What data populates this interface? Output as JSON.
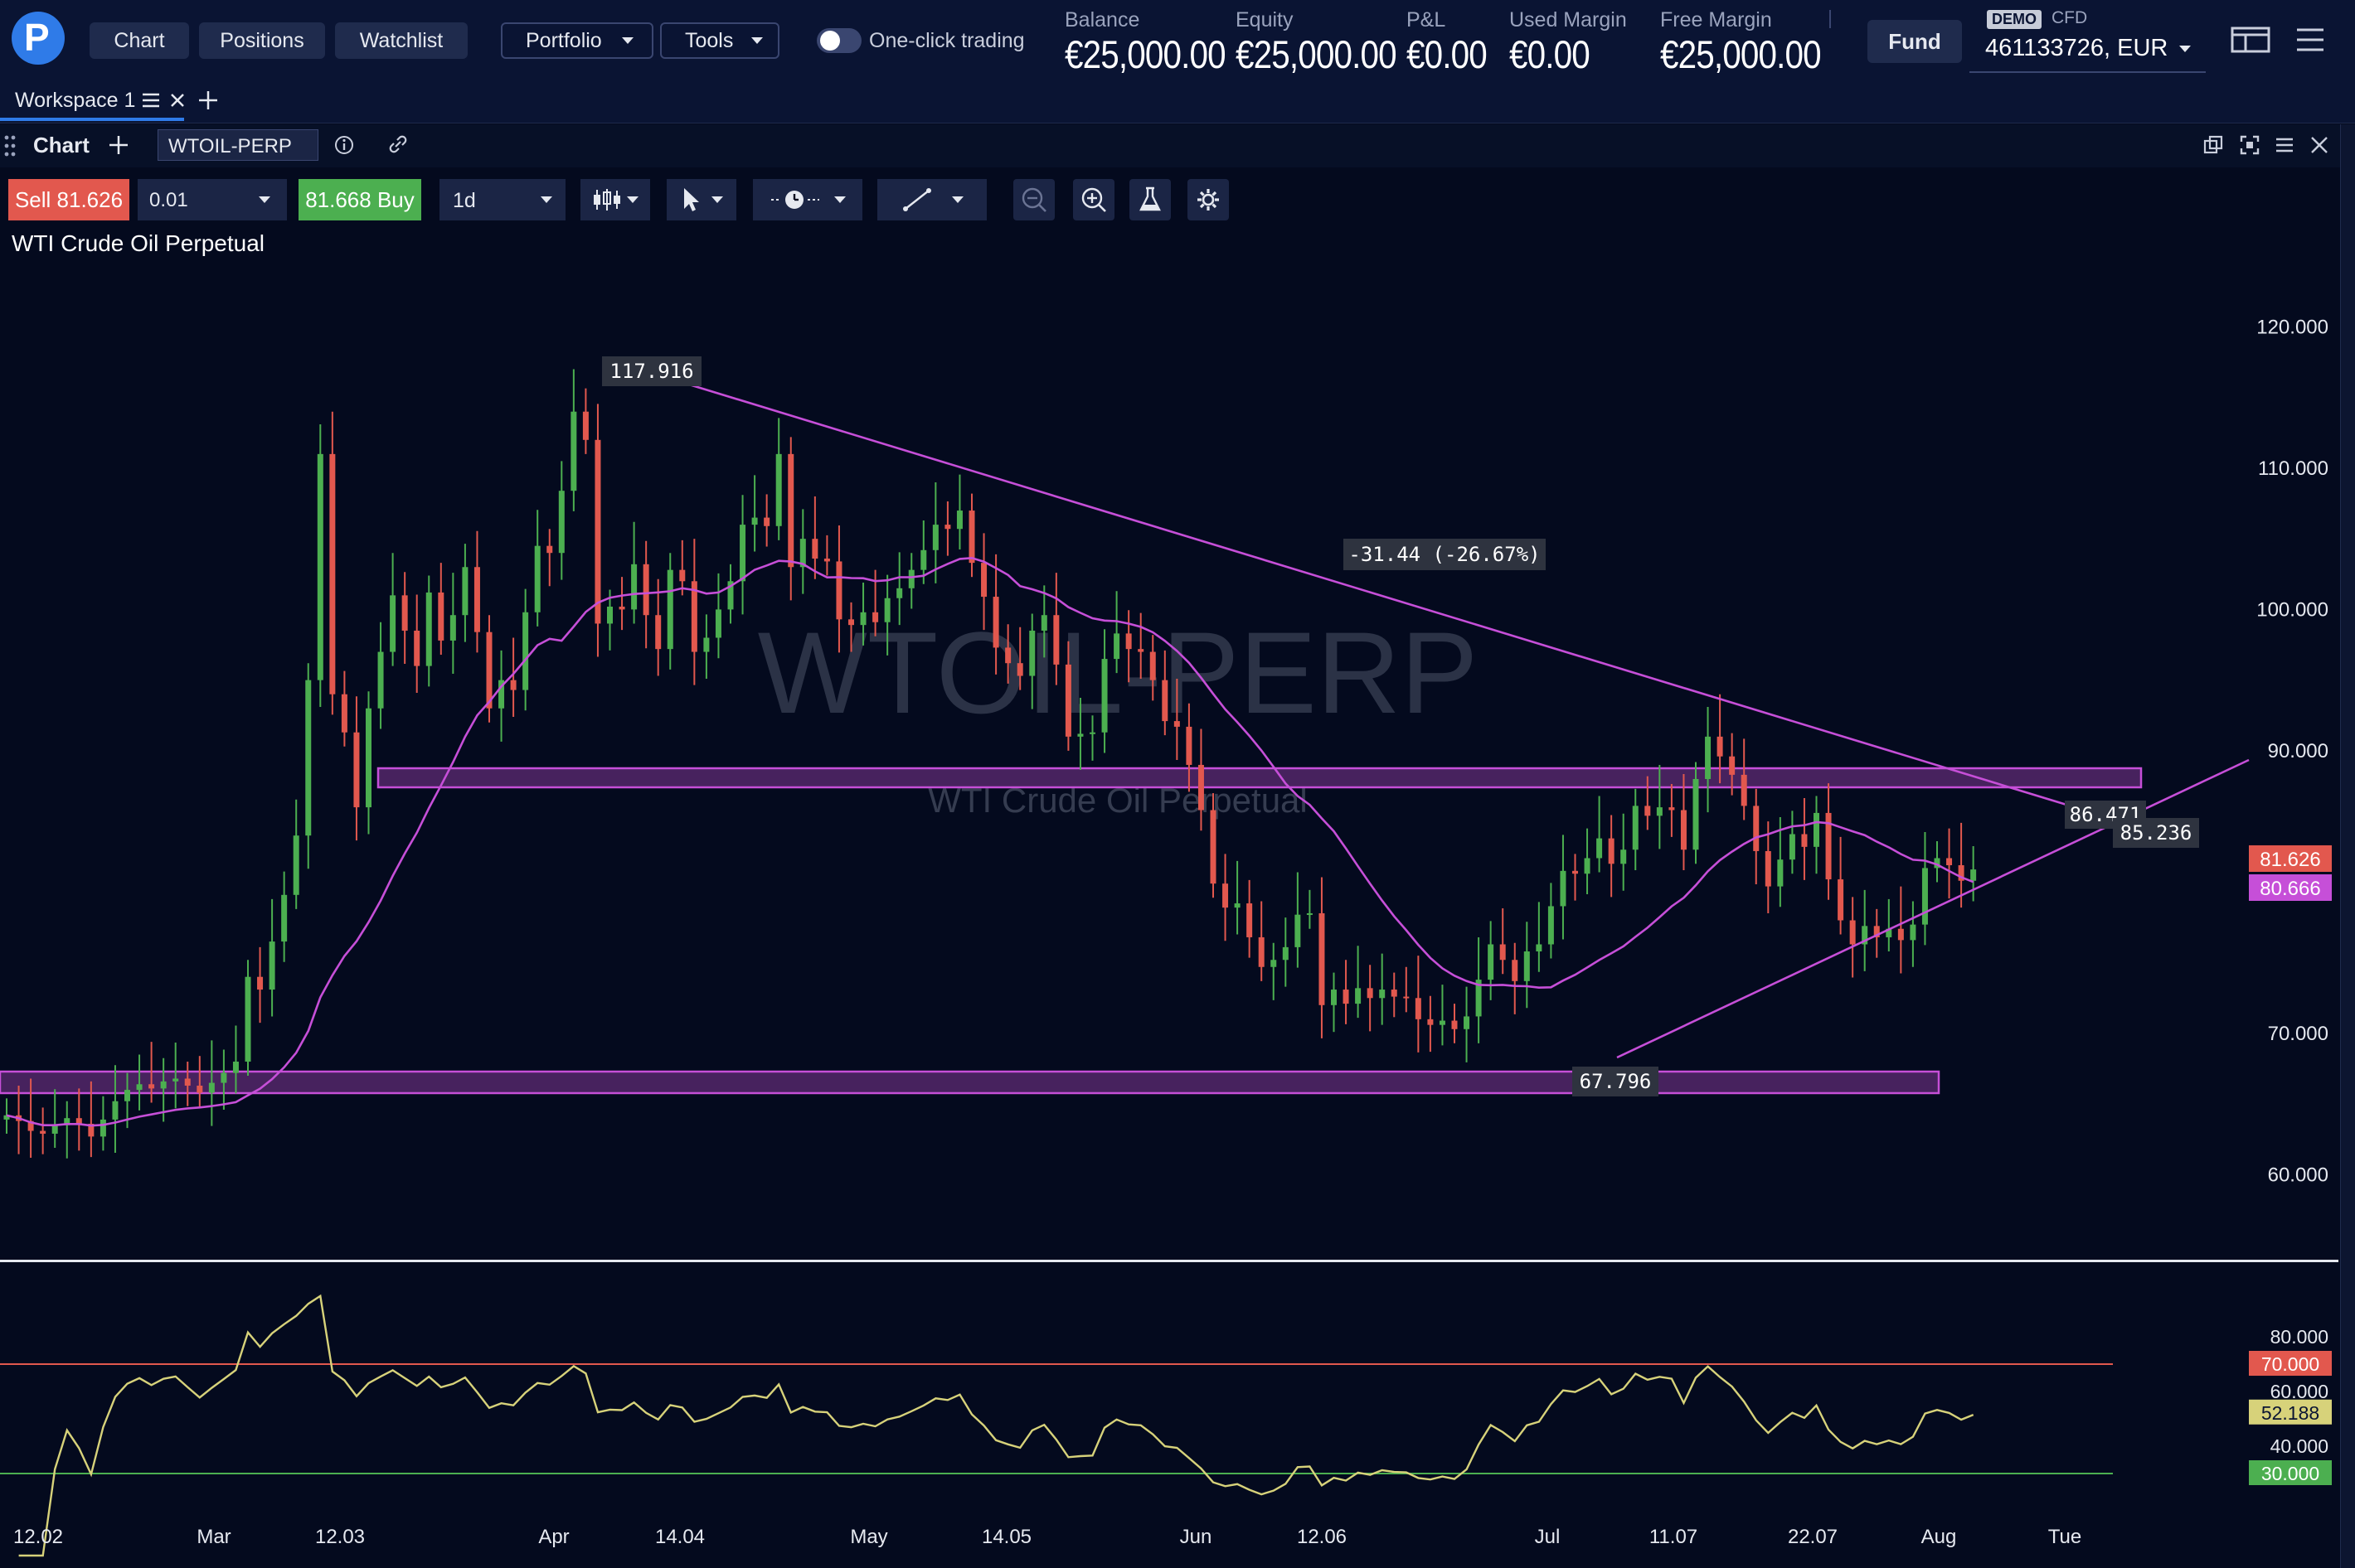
{
  "nav": {
    "buttons": [
      "Chart",
      "Positions",
      "Watchlist"
    ],
    "portfolio": "Portfolio",
    "tools": "Tools",
    "one_click": "One-click trading"
  },
  "account": {
    "balance_label": "Balance",
    "balance": "€25,000.00",
    "equity_label": "Equity",
    "equity": "€25,000.00",
    "pnl_label": "P&L",
    "pnl": "€0.00",
    "used_margin_label": "Used Margin",
    "used_margin": "€0.00",
    "free_margin_label": "Free Margin",
    "free_margin": "€25,000.00",
    "fund": "Fund",
    "demo": "DEMO",
    "cfd": "CFD",
    "account_number": "461133726, EUR"
  },
  "workspace": {
    "tab": "Workspace 1"
  },
  "chart_header": {
    "title": "Chart",
    "symbol": "WTOIL-PERP"
  },
  "toolbar": {
    "sell_label": "Sell",
    "sell_price": "81.626",
    "quantity": "0.01",
    "buy_price": "81.668",
    "buy_label": "Buy",
    "interval": "1d"
  },
  "instrument_name": "WTI Crude Oil Perpetual",
  "watermark": {
    "symbol": "WTOIL-PERP",
    "name": "WTI Crude Oil Perpetual"
  },
  "colors": {
    "up": "#4caf50",
    "down": "#e2584e",
    "ma": "#c64fd8",
    "rsi": "#d7d27a",
    "bg": "#040a1e"
  },
  "chart_data": {
    "type": "candlestick",
    "price_axis": [
      "120.000",
      "110.000",
      "100.000",
      "90.000",
      "70.000",
      "60.000"
    ],
    "ylim": [
      56,
      126
    ],
    "time_axis": [
      "12.02",
      "Mar",
      "12.03",
      "Apr",
      "14.04",
      "May",
      "14.05",
      "Jun",
      "12.06",
      "Jul",
      "11.07",
      "22.07",
      "Aug",
      "Tue"
    ],
    "annotations": {
      "high": "117.916",
      "low": "67.796",
      "measure": "-31.44 (-26.67%)",
      "l1": "86.471",
      "l2": "85.236"
    },
    "price_tags": {
      "sell": "81.626",
      "ma": "80.666"
    },
    "closes": [
      64.2,
      63.8,
      63.1,
      62.9,
      63.5,
      64.0,
      63.6,
      62.7,
      63.9,
      65.2,
      66.0,
      66.4,
      66.1,
      66.6,
      66.8,
      66.3,
      65.8,
      66.5,
      67.2,
      68.0,
      74.0,
      73.1,
      76.5,
      79.8,
      84.0,
      95.0,
      111.0,
      94.0,
      91.3,
      86.0,
      93.0,
      97.0,
      101.0,
      98.5,
      96.0,
      101.2,
      97.8,
      99.6,
      103.0,
      98.4,
      93.0,
      95.0,
      94.3,
      99.8,
      104.5,
      104.0,
      108.4,
      114.0,
      112.0,
      99.0,
      100.2,
      100.0,
      103.2,
      99.6,
      97.2,
      102.8,
      102.0,
      97.0,
      98.0,
      100.0,
      102.0,
      106.0,
      106.5,
      105.9,
      111.0,
      103.0,
      105.0,
      103.6,
      103.4,
      99.3,
      98.9,
      99.8,
      99.1,
      100.8,
      101.5,
      102.8,
      104.2,
      106.0,
      105.7,
      107.0,
      103.3,
      100.9,
      97.3,
      96.2,
      95.3,
      98.5,
      99.6,
      96.1,
      91.0,
      91.2,
      91.3,
      96.5,
      98.3,
      97.2,
      97.0,
      95.0,
      92.1,
      91.7,
      89.0,
      85.8,
      80.6,
      78.9,
      79.2,
      76.8,
      74.7,
      75.2,
      76.1,
      78.4,
      78.5,
      72.0,
      73.1,
      72.1,
      73.2,
      72.5,
      73.1,
      72.6,
      72.5,
      71.0,
      70.6,
      70.9,
      70.3,
      71.2,
      73.8,
      76.3,
      75.2,
      73.7,
      75.8,
      76.3,
      79.0,
      81.5,
      81.3,
      82.4,
      83.8,
      82.0,
      83.0,
      86.1,
      85.4,
      86.0,
      85.8,
      83.0,
      88.0,
      91.0,
      89.6,
      88.3,
      86.1,
      82.9,
      80.4,
      82.3,
      84.1,
      83.2,
      85.6,
      80.9,
      78.0,
      76.3,
      77.6,
      76.8,
      77.4,
      76.6,
      77.7,
      81.7,
      82.4,
      81.9,
      80.8,
      81.6
    ],
    "rsi": {
      "levels": [
        "80.000",
        "70.000",
        "60.000",
        "52.188",
        "40.000",
        "30.000"
      ],
      "overbought": 70,
      "oversold": 30,
      "value": "52.188"
    }
  }
}
